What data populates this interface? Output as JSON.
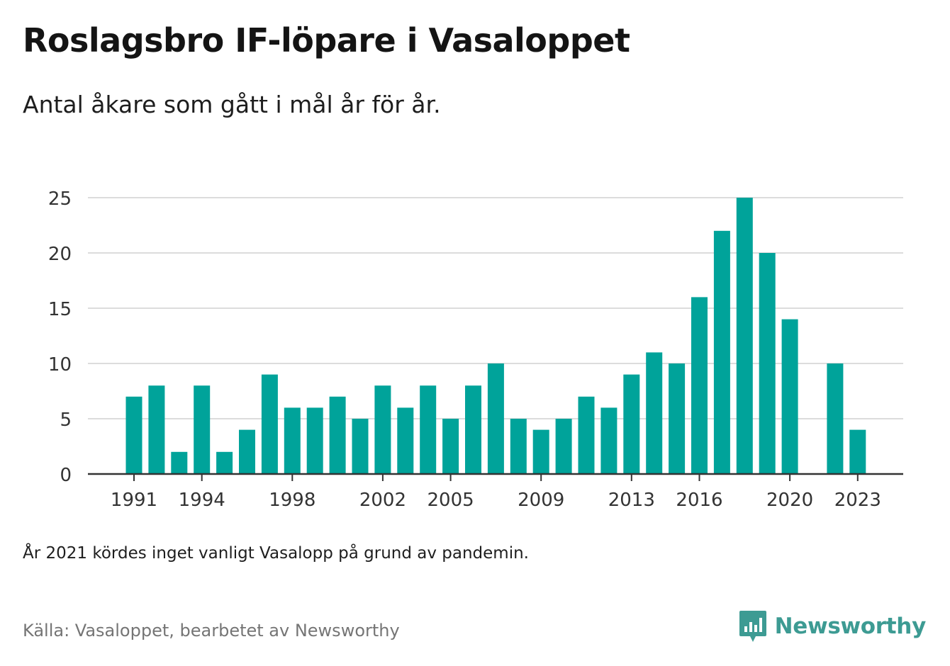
{
  "header": {
    "title": "Roslagsbro IF-löpare i Vasaloppet",
    "subtitle": "Antal åkare som gått i mål år för år."
  },
  "footer": {
    "note": "År 2021 kördes inget vanligt Vasalopp på grund av pandemin.",
    "source": "Källa: Vasaloppet, bearbetet av Newsworthy",
    "brand": "Newsworthy",
    "brand_icon": "bar-chart-speech-bubble-icon"
  },
  "colors": {
    "bar": "#00a39a",
    "grid": "#dcdcdc",
    "axis": "#333333",
    "brand": "#3d9b93"
  },
  "chart_data": {
    "type": "bar",
    "categories": [
      "1991",
      "1992",
      "1993",
      "1994",
      "1995",
      "1996",
      "1997",
      "1998",
      "1999",
      "2000",
      "2001",
      "2002",
      "2003",
      "2004",
      "2005",
      "2006",
      "2007",
      "2008",
      "2009",
      "2010",
      "2011",
      "2012",
      "2013",
      "2014",
      "2015",
      "2016",
      "2017",
      "2018",
      "2019",
      "2020",
      "2021",
      "2022",
      "2023"
    ],
    "values": [
      7,
      8,
      2,
      8,
      2,
      4,
      9,
      6,
      6,
      7,
      5,
      8,
      6,
      8,
      5,
      8,
      10,
      5,
      4,
      5,
      7,
      6,
      9,
      11,
      10,
      16,
      22,
      25,
      20,
      14,
      null,
      10,
      4
    ],
    "x_tick_labels": [
      "1991",
      "1994",
      "1998",
      "2002",
      "2005",
      "2009",
      "2013",
      "2016",
      "2020",
      "2023"
    ],
    "y_ticks": [
      0,
      5,
      10,
      15,
      20,
      25
    ],
    "ylim": [
      0,
      25
    ],
    "grid": true,
    "legend": "none"
  }
}
